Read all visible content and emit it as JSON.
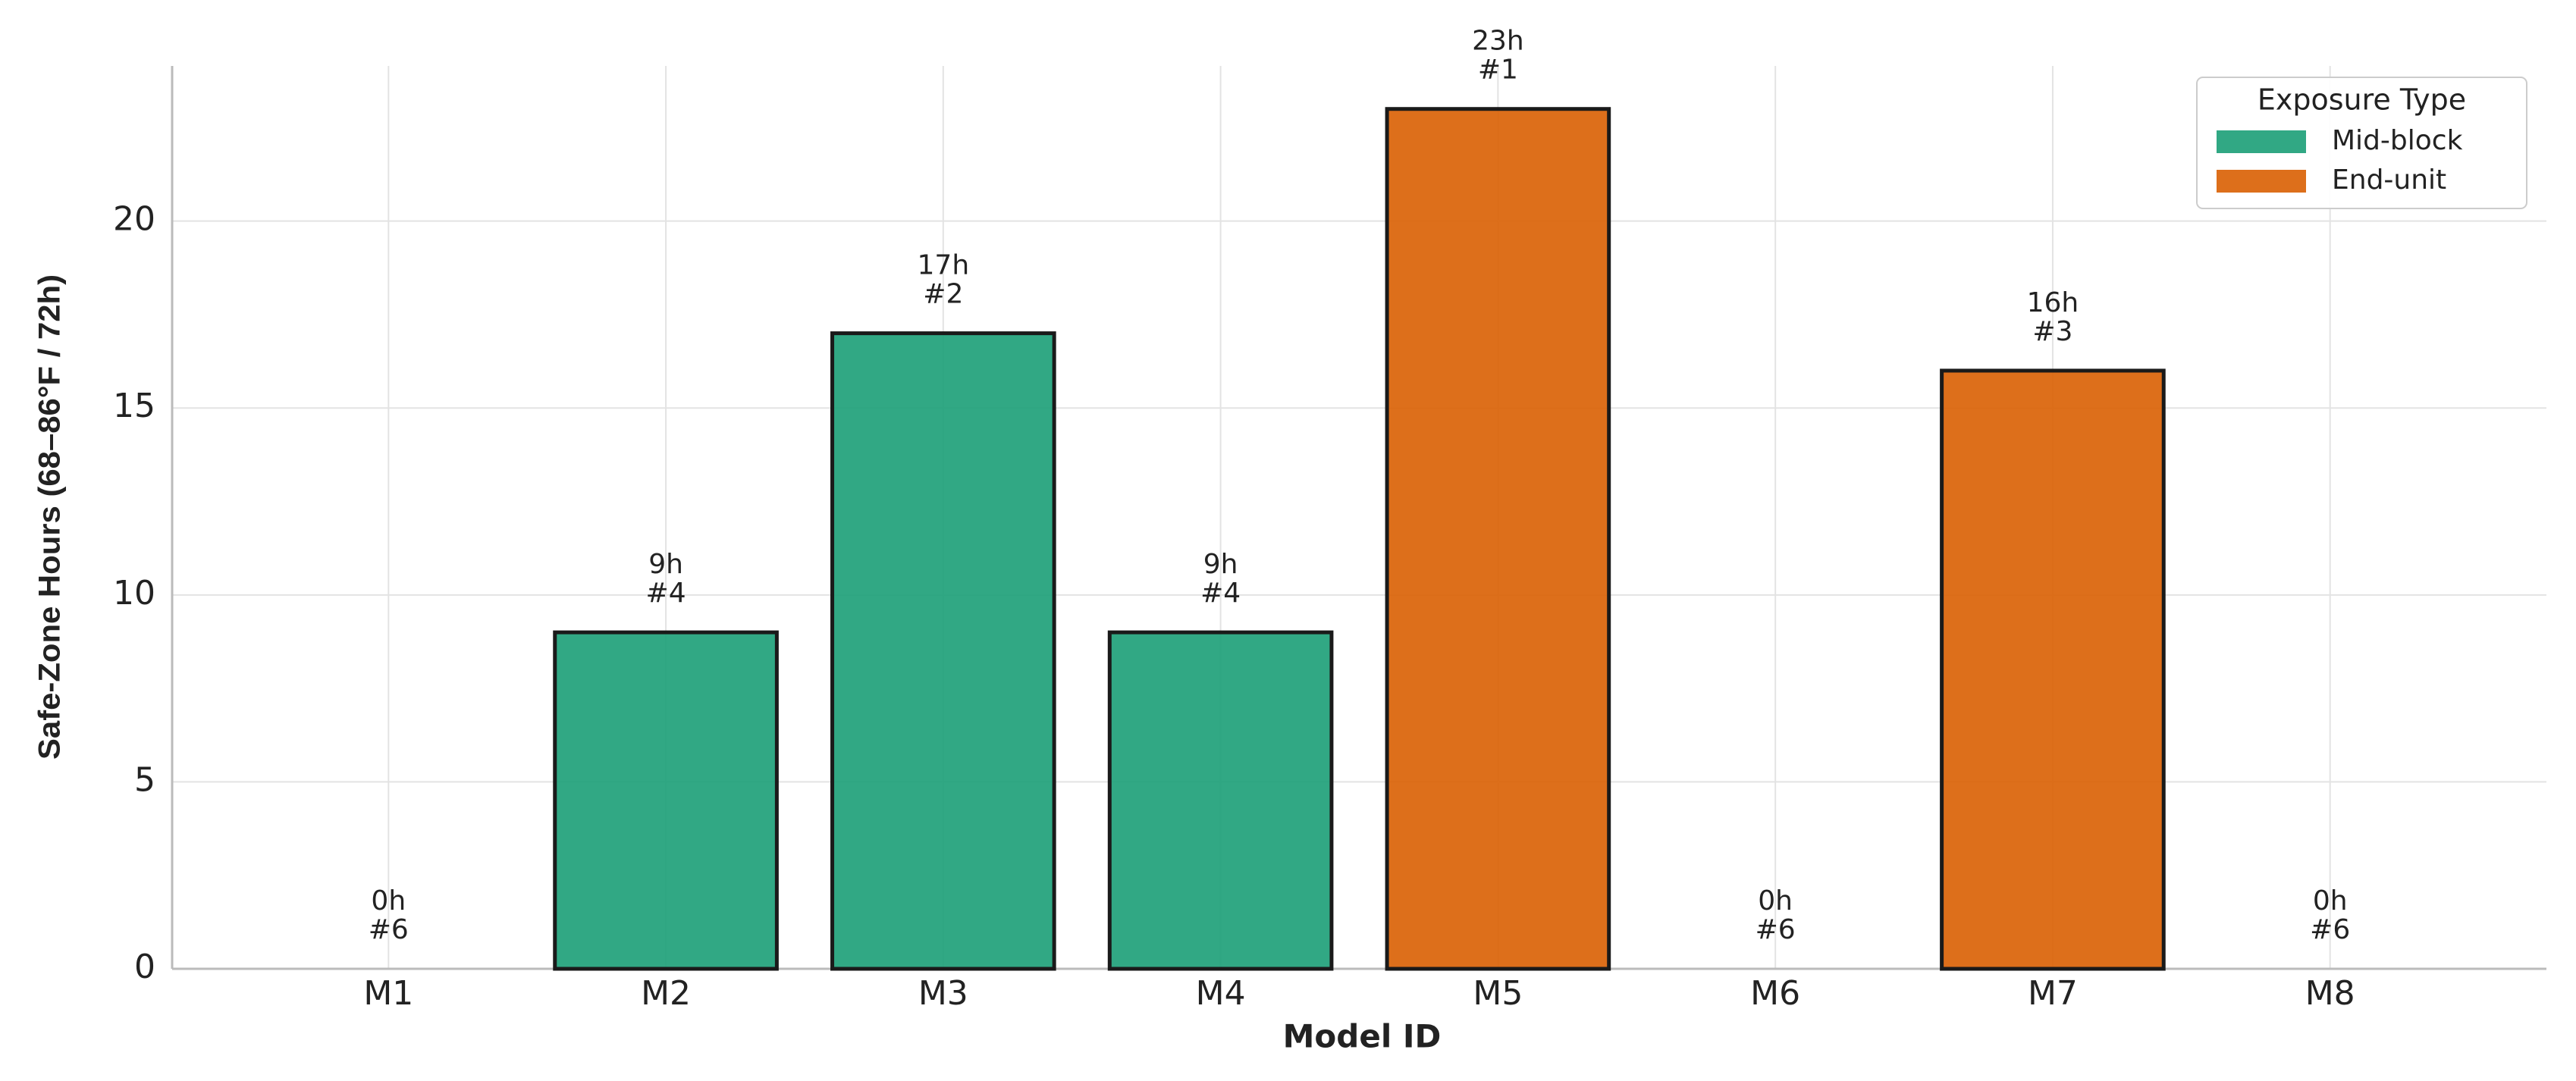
{
  "chart_data": {
    "type": "bar",
    "x_label": "Model ID",
    "y_label": "Safe-Zone Hours (68–86°F / 72h)",
    "categories": [
      "M1",
      "M2",
      "M3",
      "M4",
      "M5",
      "M6",
      "M7",
      "M8"
    ],
    "series": [
      {
        "name": "Mid-block",
        "color": "#1b9e77",
        "values": [
          0,
          9,
          17,
          9,
          null,
          null,
          null,
          null
        ],
        "value_labels": [
          "0h",
          "9h",
          "17h",
          "9h",
          null,
          null,
          null,
          null
        ],
        "rank_labels": [
          "#6",
          "#4",
          "#2",
          "#4",
          null,
          null,
          null,
          null
        ]
      },
      {
        "name": "End-unit",
        "color": "#d95f02",
        "values": [
          null,
          null,
          null,
          null,
          23,
          0,
          16,
          0
        ],
        "value_labels": [
          null,
          null,
          null,
          null,
          "23h",
          "0h",
          "16h",
          "0h"
        ],
        "rank_labels": [
          null,
          null,
          null,
          null,
          "#1",
          "#6",
          "#3",
          "#6"
        ]
      }
    ],
    "legend_title": "Exposure Type",
    "legend_position": "upper right",
    "ylim": [
      0,
      24.15
    ],
    "yticks": [
      0,
      5,
      10,
      15,
      20
    ],
    "grid": true
  }
}
